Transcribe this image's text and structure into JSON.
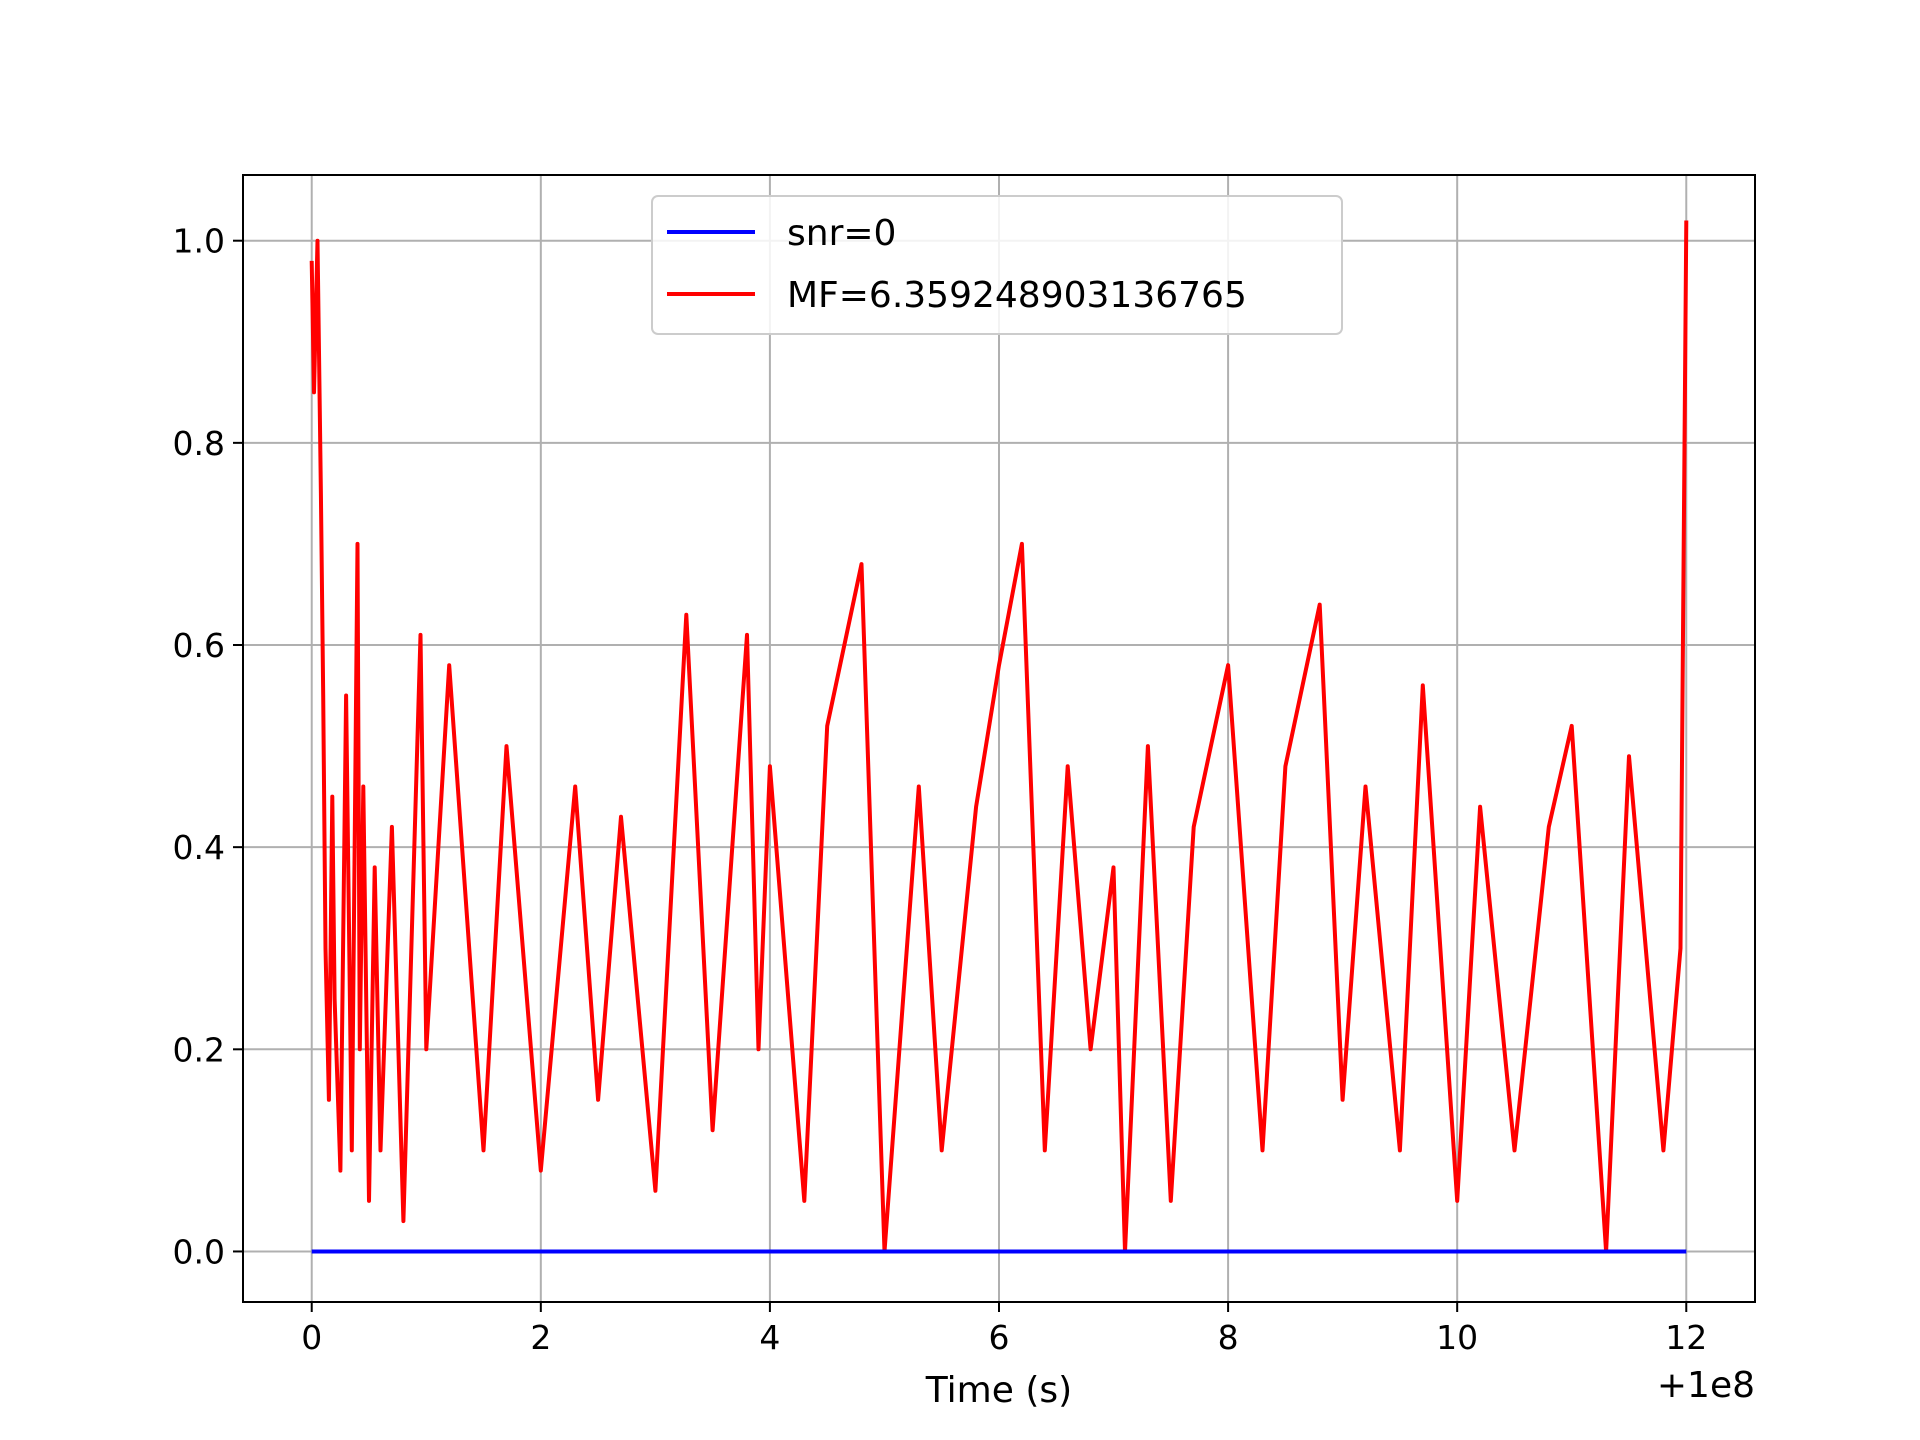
{
  "chart_data": {
    "type": "line",
    "title": "",
    "xlabel": "Time (s)",
    "ylabel": "",
    "x_offset_label": "+1e8",
    "xlim": [
      -0.6,
      12.6
    ],
    "ylim": [
      -0.05,
      1.065
    ],
    "xticks": [
      0,
      2,
      4,
      6,
      8,
      10,
      12
    ],
    "xtick_labels": [
      "0",
      "2",
      "4",
      "6",
      "8",
      "10",
      "12"
    ],
    "yticks": [
      0.0,
      0.2,
      0.4,
      0.6,
      0.8,
      1.0
    ],
    "ytick_labels": [
      "0.0",
      "0.2",
      "0.4",
      "0.6",
      "0.8",
      "1.0"
    ],
    "grid": true,
    "legend_position": "upper-center",
    "series": [
      {
        "name": "snr=0",
        "color": "#0000ff",
        "x": [
          0,
          12
        ],
        "y": [
          0,
          0
        ]
      },
      {
        "name": "MF=6.359248903136765",
        "color": "#ff0000",
        "x": [
          0,
          0.02,
          0.05,
          0.08,
          0.1,
          0.12,
          0.15,
          0.18,
          0.2,
          0.25,
          0.3,
          0.35,
          0.4,
          0.42,
          0.45,
          0.5,
          0.55,
          0.6,
          0.7,
          0.8,
          0.95,
          1.0,
          1.2,
          1.5,
          1.7,
          2.0,
          2.3,
          2.5,
          2.7,
          3.0,
          3.27,
          3.5,
          3.8,
          3.9,
          4.0,
          4.3,
          4.5,
          4.8,
          5.0,
          5.3,
          5.5,
          5.8,
          6.0,
          6.2,
          6.4,
          6.6,
          6.8,
          7.0,
          7.1,
          7.3,
          7.5,
          7.7,
          8.0,
          8.3,
          8.5,
          8.8,
          9.0,
          9.2,
          9.5,
          9.7,
          10.0,
          10.2,
          10.5,
          10.8,
          11.0,
          11.3,
          11.5,
          11.8,
          11.95,
          12.0
        ],
        "y": [
          0.98,
          0.85,
          1.0,
          0.75,
          0.55,
          0.3,
          0.15,
          0.45,
          0.25,
          0.08,
          0.55,
          0.1,
          0.7,
          0.2,
          0.46,
          0.05,
          0.38,
          0.1,
          0.42,
          0.03,
          0.61,
          0.2,
          0.58,
          0.1,
          0.5,
          0.08,
          0.46,
          0.15,
          0.43,
          0.06,
          0.63,
          0.12,
          0.61,
          0.2,
          0.48,
          0.05,
          0.52,
          0.68,
          0.0,
          0.46,
          0.1,
          0.44,
          0.58,
          0.7,
          0.1,
          0.48,
          0.2,
          0.38,
          0.0,
          0.5,
          0.05,
          0.42,
          0.58,
          0.1,
          0.48,
          0.64,
          0.15,
          0.46,
          0.1,
          0.56,
          0.05,
          0.44,
          0.1,
          0.42,
          0.52,
          0.0,
          0.49,
          0.1,
          0.3,
          1.02
        ]
      }
    ]
  }
}
